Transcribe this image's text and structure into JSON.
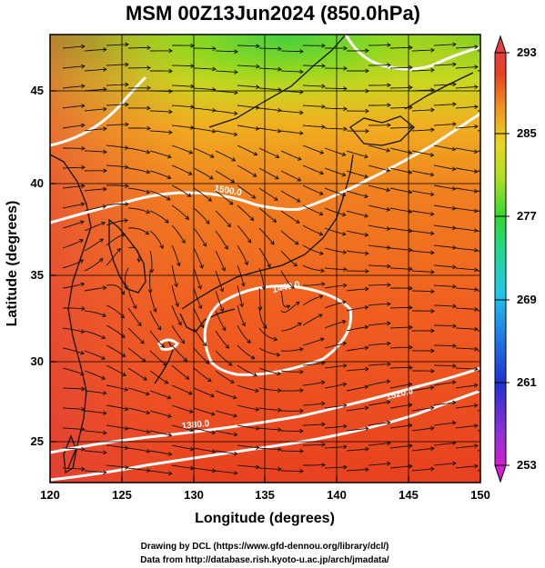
{
  "title": "MSM 00Z13Jun2024 (850.0hPa)",
  "x_axis": {
    "label": "Longitude (degrees)",
    "ticks": [
      "120",
      "125",
      "130",
      "135",
      "140",
      "145",
      "150"
    ]
  },
  "y_axis": {
    "label": "Latitude  (degrees)",
    "ticks": [
      "25",
      "30",
      "35",
      "40",
      "45"
    ]
  },
  "colorbar": {
    "ticks": [
      "253",
      "261",
      "269",
      "277",
      "285",
      "293"
    ],
    "colors": [
      "#d020d0",
      "#7a30d8",
      "#2030d0",
      "#2080e8",
      "#20c8e8",
      "#20d890",
      "#30d830",
      "#90e020",
      "#e0e020",
      "#f0b020",
      "#f07020",
      "#e83020",
      "#e04040"
    ]
  },
  "contour_labels": [
    "1380.0",
    "1440.0",
    "1500.0",
    "1520.0"
  ],
  "credits": {
    "line1": "Drawing by DCL (https://www.gfd-dennou.org/library/dcl/)",
    "line2": "Data from http://database.rish.kyoto-u.ac.jp/arch/jmadata/"
  }
}
